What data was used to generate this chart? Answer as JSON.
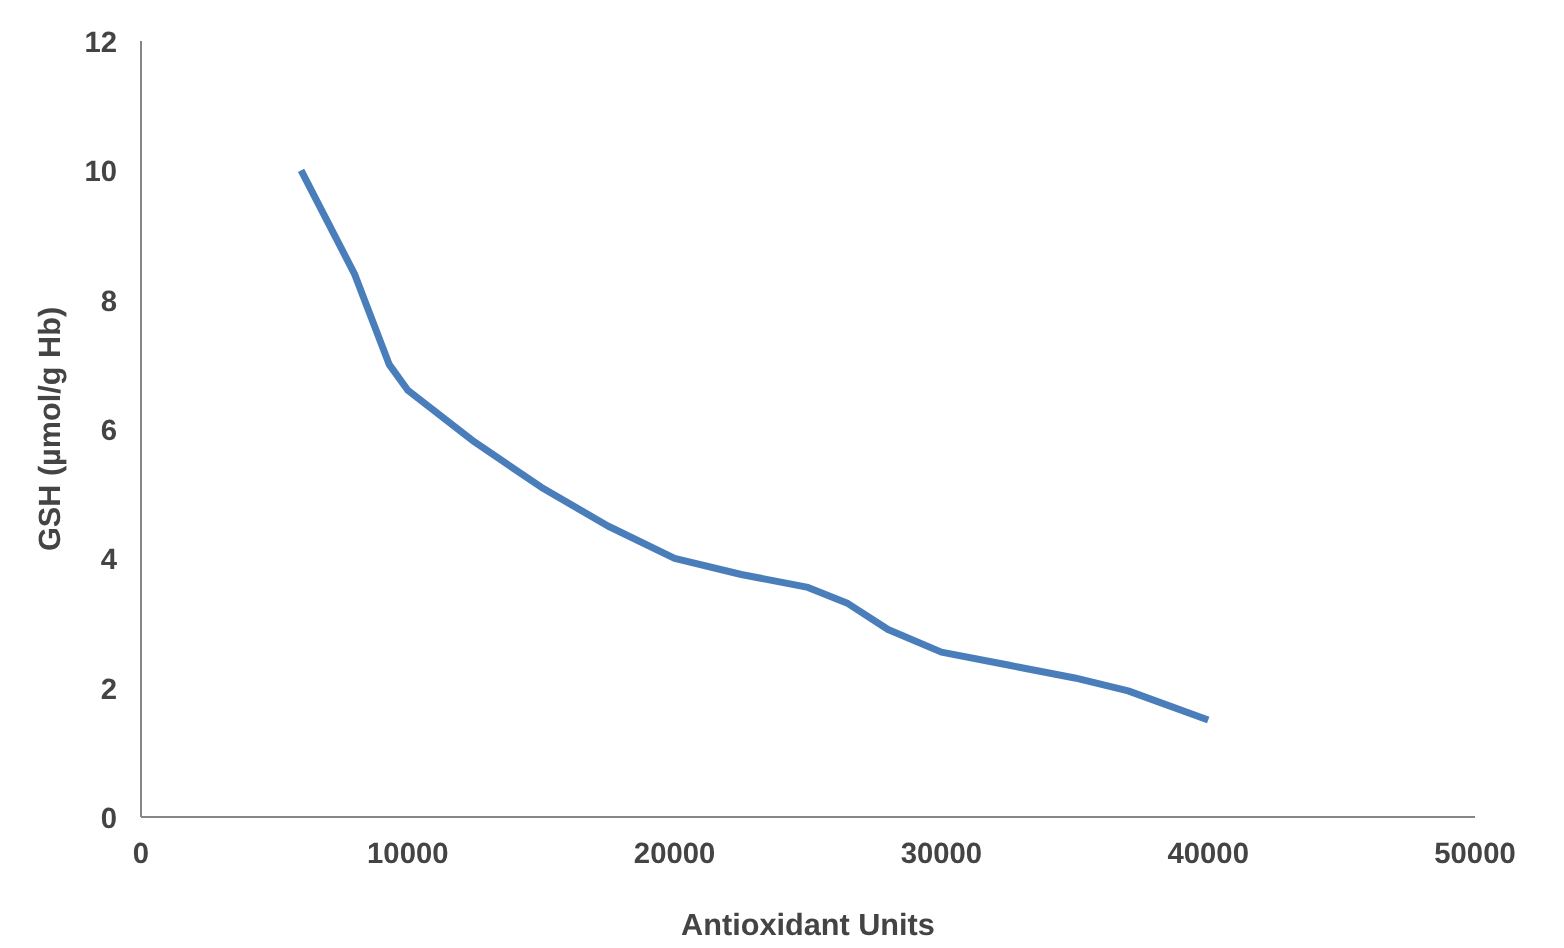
{
  "chart_data": {
    "type": "line",
    "xlabel": "Antioxidant Units",
    "ylabel": "GSH (µmol/g Hb)",
    "x": [
      6000,
      8000,
      9300,
      10000,
      12500,
      15000,
      17500,
      20000,
      22500,
      25000,
      26500,
      28000,
      30000,
      32500,
      35000,
      37000,
      40000
    ],
    "series": [
      {
        "color": "#4a7ebb",
        "values": [
          10.0,
          8.4,
          7.0,
          6.6,
          5.8,
          5.1,
          4.5,
          4.0,
          3.75,
          3.55,
          3.3,
          2.9,
          2.55,
          2.35,
          2.15,
          1.95,
          1.5
        ]
      }
    ],
    "xlim": [
      0,
      50000
    ],
    "xticks": [
      0,
      10000,
      20000,
      30000,
      40000,
      50000
    ],
    "ylim": [
      0,
      12
    ],
    "yticks": [
      0,
      2,
      4,
      6,
      8,
      10,
      12
    ],
    "grid": false,
    "marker": "none",
    "line_style": "solid"
  }
}
